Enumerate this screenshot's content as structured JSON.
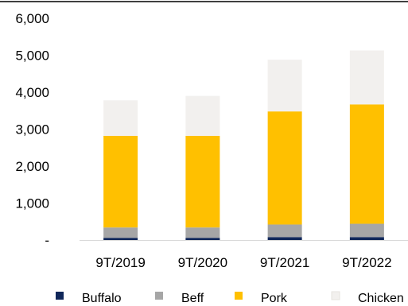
{
  "chart_data": {
    "type": "bar",
    "stacked": true,
    "categories": [
      "9T/2019",
      "9T/2020",
      "9T/2021",
      "9T/2022"
    ],
    "series": [
      {
        "name": "Buffalo",
        "color": "#10275a",
        "values": [
          60,
          60,
          80,
          80
        ]
      },
      {
        "name": "Beff",
        "color": "#a6a6a6",
        "values": [
          280,
          280,
          340,
          360
        ]
      },
      {
        "name": "Pork",
        "color": "#ffc000",
        "values": [
          2480,
          2480,
          3060,
          3230
        ]
      },
      {
        "name": "Chicken",
        "color": "#f2f0ee",
        "values": [
          960,
          1080,
          1400,
          1460
        ]
      }
    ],
    "ylim": [
      0,
      6000
    ],
    "yticks": [
      0,
      1000,
      2000,
      3000,
      4000,
      5000,
      6000
    ],
    "ytick_labels": [
      "-",
      "1,000",
      "2,000",
      "3,000",
      "4,000",
      "5,000",
      "6,000"
    ],
    "xlabel": "",
    "ylabel": "",
    "title": "",
    "grid": false,
    "legend_position": "bottom"
  }
}
